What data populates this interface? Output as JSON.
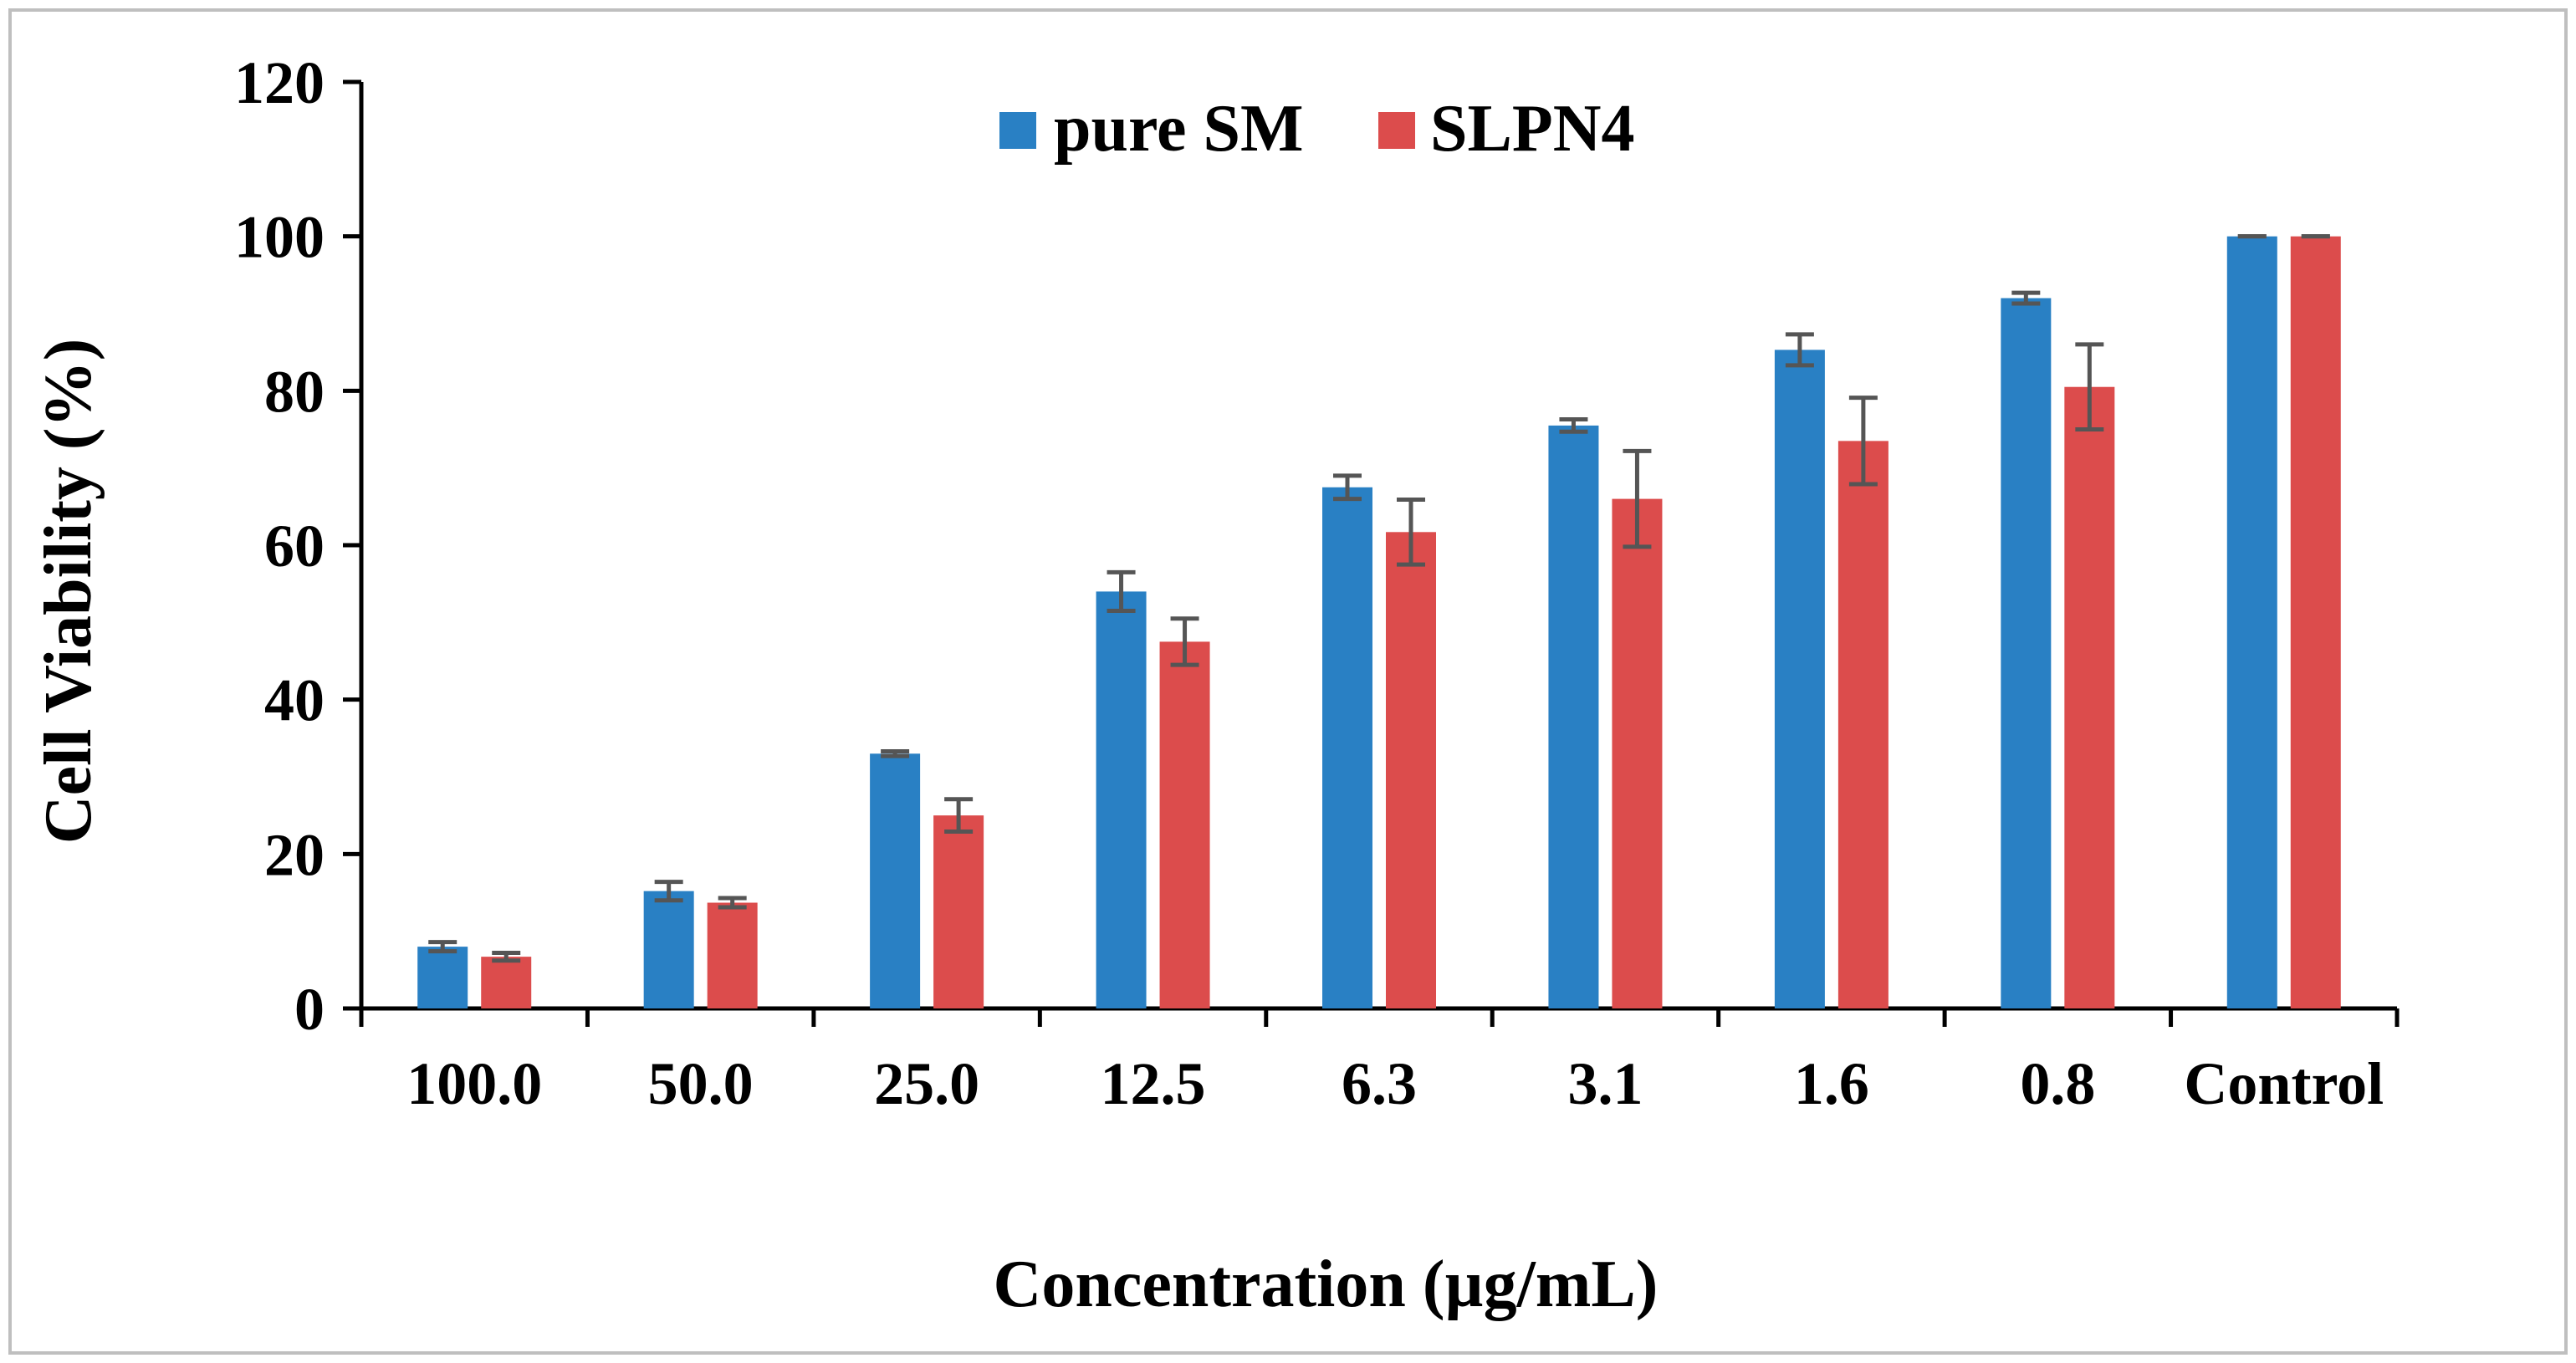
{
  "chart_data": {
    "type": "bar",
    "xlabel": "Concentration (µg/mL)",
    "ylabel": "Cell Viability (%)",
    "ylim": [
      0,
      120
    ],
    "yticks": [
      0,
      20,
      40,
      60,
      80,
      100,
      120
    ],
    "categories": [
      "100.0",
      "50.0",
      "25.0",
      "12.5",
      "6.3",
      "3.1",
      "1.6",
      "0.8",
      "Control"
    ],
    "series": [
      {
        "name": "pure SM",
        "color": "#2980c4",
        "values": [
          8.0,
          15.2,
          33.0,
          54.0,
          67.5,
          75.5,
          85.3,
          92.0,
          100.0
        ],
        "errors": [
          0.6,
          1.2,
          0.3,
          2.5,
          1.5,
          0.8,
          2.0,
          0.7,
          0.0
        ]
      },
      {
        "name": "SLPN4",
        "color": "#dc4c4c",
        "values": [
          6.7,
          13.7,
          25.0,
          47.5,
          61.7,
          66.0,
          73.5,
          80.5,
          100.0
        ],
        "errors": [
          0.5,
          0.6,
          2.1,
          3.0,
          4.2,
          6.2,
          5.6,
          5.5,
          0.0
        ]
      }
    ],
    "legend_position": "top-center",
    "grid": false
  }
}
